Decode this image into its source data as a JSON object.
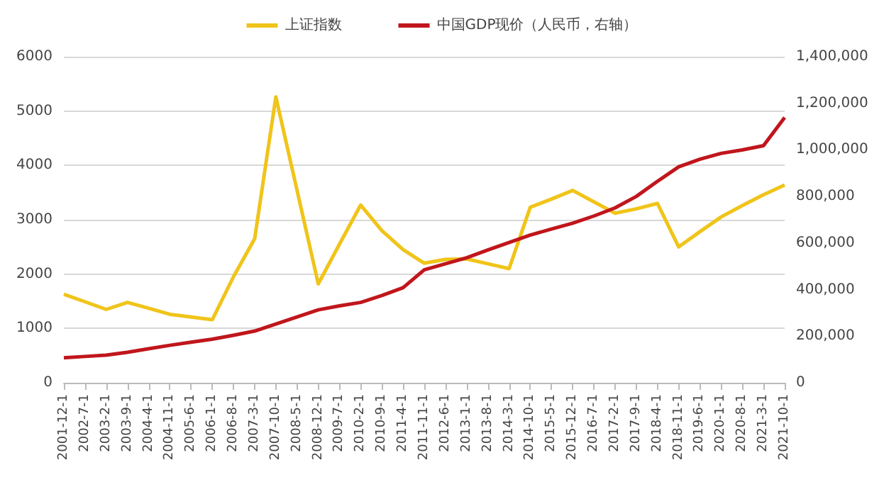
{
  "chart_data": {
    "type": "line",
    "categories": [
      "2001-12-1",
      "2002-7-1",
      "2003-2-1",
      "2003-9-1",
      "2004-4-1",
      "2004-11-1",
      "2005-6-1",
      "2006-1-1",
      "2006-8-1",
      "2007-3-1",
      "2007-10-1",
      "2008-5-1",
      "2008-12-1",
      "2009-7-1",
      "2010-2-1",
      "2010-9-1",
      "2011-4-1",
      "2011-11-1",
      "2012-6-1",
      "2013-1-1",
      "2013-8-1",
      "2014-3-1",
      "2014-10-1",
      "2015-5-1",
      "2015-12-1",
      "2016-7-1",
      "2017-2-1",
      "2017-9-1",
      "2018-4-1",
      "2018-11-1",
      "2019-6-1",
      "2020-1-1",
      "2020-8-1",
      "2021-3-1",
      "2021-10-1"
    ],
    "series": [
      {
        "name": "上证指数",
        "color": "#f0c419",
        "values": [
          1630,
          1490,
          1350,
          1480,
          1370,
          1260,
          1210,
          1160,
          1950,
          2650,
          5260,
          3540,
          1820,
          2550,
          3270,
          2800,
          2450,
          2200,
          2270,
          2280,
          2190,
          2100,
          3230,
          3380,
          3540,
          3330,
          3120,
          3200,
          3300,
          2500,
          2780,
          3050,
          3260,
          3460,
          3640
        ]
      },
      {
        "name": "中国GDP现价（人民币，右轴）",
        "color": "#c0161c",
        "axis": "y2",
        "values": [
          107000,
          113000,
          119000,
          131000,
          146000,
          161000,
          174000,
          187000,
          204000,
          222000,
          252000,
          283000,
          313000,
          330000,
          345000,
          375000,
          408000,
          485000,
          511000,
          537000,
          570000,
          602000,
          634000,
          660000,
          685000,
          716000,
          751000,
          800000,
          865000,
          927000,
          960000,
          985000,
          1000000,
          1018000,
          1139000
        ]
      }
    ],
    "ylim": [
      0,
      6000
    ],
    "yticks": [
      0,
      1000,
      2000,
      3000,
      4000,
      5000,
      6000
    ],
    "y2lim": [
      0,
      1400000
    ],
    "y2ticks": [
      {
        "value": 0,
        "label": "0"
      },
      {
        "value": 200000,
        "label": "200,000"
      },
      {
        "value": 400000,
        "label": "400,000"
      },
      {
        "value": 600000,
        "label": "600,000"
      },
      {
        "value": 800000,
        "label": "800,000"
      },
      {
        "value": 1000000,
        "label": "1,000,000"
      },
      {
        "value": 1200000,
        "label": "1,200,000"
      },
      {
        "value": 1400000,
        "label": "1,400,000"
      }
    ],
    "grid": "y",
    "legend": "top",
    "marker": "none",
    "line_style": "solid"
  }
}
